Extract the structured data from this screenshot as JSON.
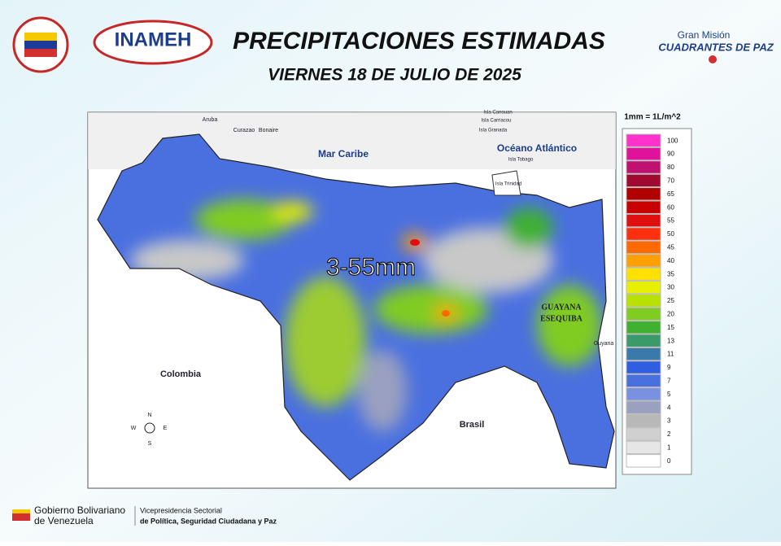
{
  "header": {
    "title": "PRECIPITACIONES ESTIMADAS",
    "date": "VIERNES 18 DE JULIO DE 2025"
  },
  "logos": {
    "inameh": "INAMEH",
    "mision_top": "Gran Misión",
    "mision_bottom": "CUADRANTES DE PAZ"
  },
  "map": {
    "range_label": "3-55mm",
    "places": {
      "sea": "Mar Caribe",
      "ocean": "Océano Atlántico",
      "colombia": "Colombia",
      "brasil": "Brasil",
      "guayana": [
        "GUAYANA",
        "ESEQUIBA"
      ],
      "guyana": "Guyana",
      "aruba": "Aruba",
      "curazao": "Curazao",
      "bonaire": "Bonaire",
      "trinidad": "Isla Trinidad",
      "tobago": "Isla Tobago",
      "granada": "Isla Granada",
      "carriacou": "Isla Carriacou",
      "canouan": "Isla Canouan"
    },
    "compass": {
      "n": "N",
      "s": "S",
      "e": "E",
      "w": "W"
    }
  },
  "legend": {
    "unit": "1mm = 1L/m^2",
    "levels": [
      {
        "value": 100,
        "color": "#ff33cc"
      },
      {
        "value": 90,
        "color": "#e0119a"
      },
      {
        "value": 80,
        "color": "#c01070"
      },
      {
        "value": 70,
        "color": "#a00a30"
      },
      {
        "value": 65,
        "color": "#b00000"
      },
      {
        "value": 60,
        "color": "#c80000"
      },
      {
        "value": 55,
        "color": "#e01010"
      },
      {
        "value": 50,
        "color": "#ff3010"
      },
      {
        "value": 45,
        "color": "#ff6a00"
      },
      {
        "value": 40,
        "color": "#ffa000"
      },
      {
        "value": 35,
        "color": "#ffe000"
      },
      {
        "value": 30,
        "color": "#e6f000"
      },
      {
        "value": 25,
        "color": "#b8e000"
      },
      {
        "value": 20,
        "color": "#80cc20"
      },
      {
        "value": 15,
        "color": "#40b030"
      },
      {
        "value": 13,
        "color": "#3a9a6a"
      },
      {
        "value": 11,
        "color": "#3a7aaa"
      },
      {
        "value": 9,
        "color": "#2f5fe0"
      },
      {
        "value": 7,
        "color": "#4a70e0"
      },
      {
        "value": 5,
        "color": "#7a90e0"
      },
      {
        "value": 4,
        "color": "#9aa0c0"
      },
      {
        "value": 3,
        "color": "#b8b8b8"
      },
      {
        "value": 2,
        "color": "#d0d0d0"
      },
      {
        "value": 1,
        "color": "#e6e6e6"
      },
      {
        "value": 0,
        "color": "#ffffff"
      }
    ]
  },
  "footer": {
    "gov_top": "Gobierno Bolivariano",
    "gov_bottom": "de Venezuela",
    "vice_top": "Vicepresidencia Sectorial",
    "vice_bottom": "de Política, Seguridad Ciudadana y Paz"
  }
}
